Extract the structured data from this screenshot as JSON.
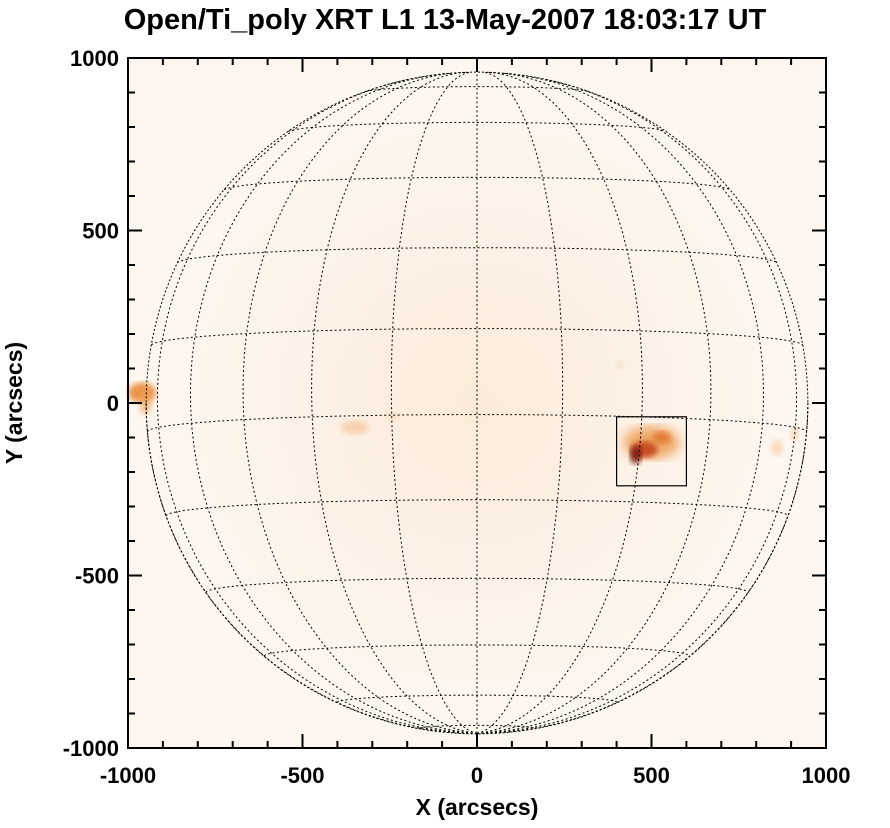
{
  "image": {
    "title": "Open/Ti_poly XRT L1 13-May-2007 18:03:17 UT",
    "xlabel": "X (arcsecs)",
    "ylabel": "Y (arcsecs)",
    "x_ticks": [
      "-1000",
      "-500",
      "0",
      "500",
      "1000"
    ],
    "y_ticks": [
      "1000",
      "500",
      "0",
      "-500",
      "-1000"
    ],
    "xlim": [
      -1000,
      1000
    ],
    "ylim": [
      -1000,
      1000
    ],
    "solar_radius_arcsec": 948,
    "box": {
      "x1": 400,
      "x2": 600,
      "y1": -240,
      "y2": -40
    },
    "colors": {
      "emission": "#e8822a",
      "core": "#7a1408",
      "background": "#fdf6ee"
    }
  }
}
